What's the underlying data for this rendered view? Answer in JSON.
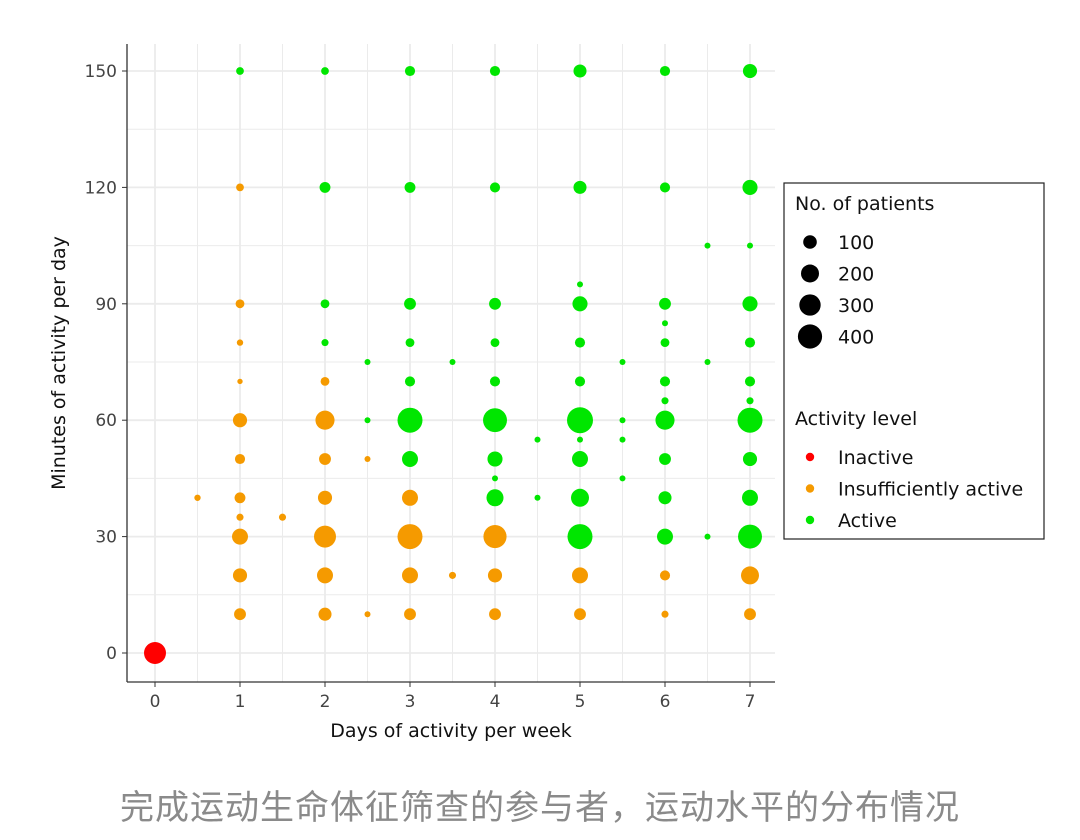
{
  "chart_data": {
    "type": "scatter",
    "xlabel": "Days of activity per week",
    "ylabel": "Minutes of activity per day",
    "xlim": [
      -0.3,
      7.3
    ],
    "ylim": [
      -7,
      157
    ],
    "xticks": [
      0,
      1,
      2,
      3,
      4,
      5,
      6,
      7
    ],
    "yticks": [
      0,
      30,
      60,
      90,
      120,
      150
    ],
    "grid": true,
    "colors": {
      "Inactive": "#ff0000",
      "Insufficiently active": "#f59a00",
      "Active": "#00e600"
    },
    "legend": {
      "placement": "right",
      "size_title": "No. of patients",
      "size_values": [
        100,
        200,
        300,
        400
      ],
      "color_title": "Activity level",
      "levels": [
        "Inactive",
        "Insufficiently active",
        "Active"
      ]
    },
    "points": [
      [
        0,
        0,
        320,
        "Inactive"
      ],
      [
        0.5,
        40,
        10,
        "Insufficiently active"
      ],
      [
        1,
        150,
        20,
        "Active"
      ],
      [
        1,
        120,
        20,
        "Insufficiently active"
      ],
      [
        1,
        90,
        30,
        "Insufficiently active"
      ],
      [
        1,
        80,
        10,
        "Insufficiently active"
      ],
      [
        1,
        70,
        5,
        "Insufficiently active"
      ],
      [
        1,
        60,
        110,
        "Insufficiently active"
      ],
      [
        1,
        50,
        45,
        "Insufficiently active"
      ],
      [
        1,
        40,
        55,
        "Insufficiently active"
      ],
      [
        1,
        35,
        15,
        "Insufficiently active"
      ],
      [
        1,
        30,
        150,
        "Insufficiently active"
      ],
      [
        1,
        20,
        110,
        "Insufficiently active"
      ],
      [
        1,
        10,
        70,
        "Insufficiently active"
      ],
      [
        1.5,
        35,
        15,
        "Insufficiently active"
      ],
      [
        2,
        150,
        20,
        "Active"
      ],
      [
        2,
        120,
        55,
        "Active"
      ],
      [
        2,
        90,
        30,
        "Active"
      ],
      [
        2,
        80,
        15,
        "Active"
      ],
      [
        2,
        70,
        30,
        "Insufficiently active"
      ],
      [
        2,
        60,
        230,
        "Insufficiently active"
      ],
      [
        2,
        50,
        70,
        "Insufficiently active"
      ],
      [
        2,
        40,
        110,
        "Insufficiently active"
      ],
      [
        2,
        30,
        320,
        "Insufficiently active"
      ],
      [
        2,
        20,
        150,
        "Insufficiently active"
      ],
      [
        2,
        10,
        90,
        "Insufficiently active"
      ],
      [
        2.5,
        75,
        8,
        "Active"
      ],
      [
        2.5,
        60,
        8,
        "Active"
      ],
      [
        2.5,
        50,
        8,
        "Insufficiently active"
      ],
      [
        2.5,
        10,
        8,
        "Insufficiently active"
      ],
      [
        3,
        150,
        45,
        "Active"
      ],
      [
        3,
        120,
        55,
        "Active"
      ],
      [
        3,
        90,
        70,
        "Active"
      ],
      [
        3,
        80,
        30,
        "Active"
      ],
      [
        3,
        70,
        45,
        "Active"
      ],
      [
        3,
        60,
        430,
        "Active"
      ],
      [
        3,
        50,
        150,
        "Active"
      ],
      [
        3,
        40,
        150,
        "Insufficiently active"
      ],
      [
        3,
        30,
        430,
        "Insufficiently active"
      ],
      [
        3,
        20,
        150,
        "Insufficiently active"
      ],
      [
        3,
        10,
        70,
        "Insufficiently active"
      ],
      [
        3.5,
        75,
        8,
        "Active"
      ],
      [
        3.5,
        20,
        15,
        "Insufficiently active"
      ],
      [
        4,
        150,
        45,
        "Active"
      ],
      [
        4,
        120,
        45,
        "Active"
      ],
      [
        4,
        90,
        70,
        "Active"
      ],
      [
        4,
        80,
        30,
        "Active"
      ],
      [
        4,
        70,
        45,
        "Active"
      ],
      [
        4,
        60,
        390,
        "Active"
      ],
      [
        4,
        50,
        130,
        "Active"
      ],
      [
        4,
        45,
        8,
        "Active"
      ],
      [
        4,
        40,
        175,
        "Active"
      ],
      [
        4,
        30,
        360,
        "Insufficiently active"
      ],
      [
        4,
        20,
        110,
        "Insufficiently active"
      ],
      [
        4,
        10,
        70,
        "Insufficiently active"
      ],
      [
        4.5,
        55,
        8,
        "Active"
      ],
      [
        4.5,
        40,
        8,
        "Active"
      ],
      [
        5,
        150,
        90,
        "Active"
      ],
      [
        5,
        120,
        90,
        "Active"
      ],
      [
        5,
        95,
        8,
        "Active"
      ],
      [
        5,
        90,
        130,
        "Active"
      ],
      [
        5,
        80,
        45,
        "Active"
      ],
      [
        5,
        70,
        45,
        "Active"
      ],
      [
        5,
        60,
        470,
        "Active"
      ],
      [
        5,
        55,
        8,
        "Active"
      ],
      [
        5,
        50,
        150,
        "Active"
      ],
      [
        5,
        40,
        200,
        "Active"
      ],
      [
        5,
        30,
        430,
        "Active"
      ],
      [
        5,
        20,
        150,
        "Insufficiently active"
      ],
      [
        5,
        10,
        70,
        "Insufficiently active"
      ],
      [
        5.5,
        75,
        8,
        "Active"
      ],
      [
        5.5,
        60,
        8,
        "Active"
      ],
      [
        5.5,
        55,
        8,
        "Active"
      ],
      [
        5.5,
        45,
        8,
        "Active"
      ],
      [
        6,
        150,
        45,
        "Active"
      ],
      [
        6,
        120,
        45,
        "Active"
      ],
      [
        6,
        90,
        70,
        "Active"
      ],
      [
        6,
        85,
        8,
        "Active"
      ],
      [
        6,
        80,
        30,
        "Active"
      ],
      [
        6,
        70,
        45,
        "Active"
      ],
      [
        6,
        65,
        15,
        "Active"
      ],
      [
        6,
        60,
        230,
        "Active"
      ],
      [
        6,
        50,
        70,
        "Active"
      ],
      [
        6,
        40,
        90,
        "Active"
      ],
      [
        6,
        30,
        150,
        "Active"
      ],
      [
        6,
        20,
        45,
        "Insufficiently active"
      ],
      [
        6,
        10,
        15,
        "Insufficiently active"
      ],
      [
        6.5,
        105,
        8,
        "Active"
      ],
      [
        6.5,
        75,
        8,
        "Active"
      ],
      [
        6.5,
        30,
        8,
        "Active"
      ],
      [
        7,
        150,
        110,
        "Active"
      ],
      [
        7,
        120,
        130,
        "Active"
      ],
      [
        7,
        105,
        8,
        "Active"
      ],
      [
        7,
        90,
        130,
        "Active"
      ],
      [
        7,
        80,
        45,
        "Active"
      ],
      [
        7,
        70,
        45,
        "Active"
      ],
      [
        7,
        65,
        15,
        "Active"
      ],
      [
        7,
        60,
        430,
        "Active"
      ],
      [
        7,
        50,
        110,
        "Active"
      ],
      [
        7,
        40,
        150,
        "Active"
      ],
      [
        7,
        30,
        390,
        "Active"
      ],
      [
        7,
        20,
        200,
        "Insufficiently active"
      ],
      [
        7,
        10,
        70,
        "Insufficiently active"
      ]
    ]
  },
  "caption": "完成运动生命体征筛查的参与者，运动水平的分布情况"
}
